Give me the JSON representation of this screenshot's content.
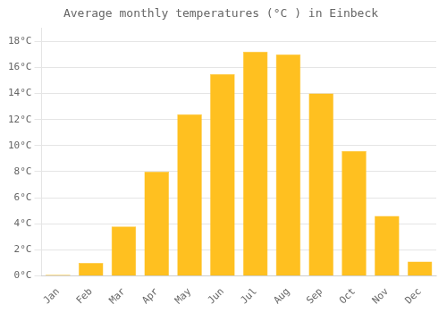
{
  "chart_data": {
    "type": "bar",
    "title": "Average monthly temperatures (°C ) in Einbeck",
    "categories": [
      "Jan",
      "Feb",
      "Mar",
      "Apr",
      "May",
      "Jun",
      "Jul",
      "Aug",
      "Sep",
      "Oct",
      "Nov",
      "Dec"
    ],
    "values": [
      0.1,
      1.0,
      3.8,
      8.0,
      12.4,
      15.5,
      17.2,
      17.0,
      14.0,
      9.6,
      4.6,
      1.1
    ],
    "color": "#FFC020",
    "ylim": [
      0,
      19
    ],
    "yticks": [
      {
        "value": 0,
        "label": "0°C"
      },
      {
        "value": 2,
        "label": "2°C"
      },
      {
        "value": 4,
        "label": "4°C"
      },
      {
        "value": 6,
        "label": "6°C"
      },
      {
        "value": 8,
        "label": "8°C"
      },
      {
        "value": 10,
        "label": "10°C"
      },
      {
        "value": 12,
        "label": "12°C"
      },
      {
        "value": 14,
        "label": "14°C"
      },
      {
        "value": 16,
        "label": "16°C"
      },
      {
        "value": 18,
        "label": "18°C"
      }
    ],
    "grid": true
  }
}
